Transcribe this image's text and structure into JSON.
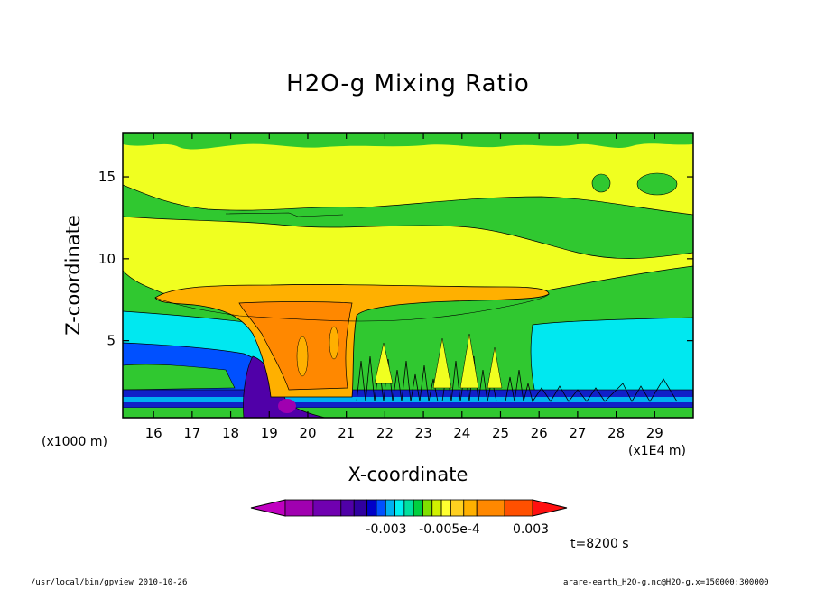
{
  "chart_data": {
    "type": "heatmap",
    "title": "H2O-g Mixing Ratio",
    "xlabel": "X-coordinate",
    "ylabel": "Z-coordinate",
    "x_multiplier_left": "(x1000 m)",
    "x_multiplier_right": "(x1E4 m)",
    "xlim": [
      15.2,
      30.0
    ],
    "ylim": [
      0.3,
      17.7
    ],
    "x_ticks": [
      16,
      17,
      18,
      19,
      20,
      21,
      22,
      23,
      24,
      25,
      26,
      27,
      28,
      29
    ],
    "y_ticks": [
      5,
      10,
      15
    ],
    "colorbar": {
      "labels": [
        "-0.003",
        "-0.005e-4",
        "0.003"
      ],
      "colors": [
        "#c000c0",
        "#a000b0",
        "#7000b0",
        "#5000a8",
        "#3000a0",
        "#0000c8",
        "#0050ff",
        "#00b0f0",
        "#00f0f0",
        "#00e0a0",
        "#00d040",
        "#80e000",
        "#d0f000",
        "#ffff30",
        "#ffd020",
        "#ffb000",
        "#ff8800",
        "#ff5000",
        "#ff1010"
      ]
    },
    "regions": [
      {
        "name": "upper-moist",
        "color": "#30c830",
        "z_range": [
          16.5,
          17.7
        ]
      },
      {
        "name": "upper-band",
        "color": "#f0ff20",
        "z_range": [
          8.5,
          16.5
        ]
      },
      {
        "name": "anvil-cloud",
        "color": "#ffa500",
        "x_range": [
          18.5,
          26.3
        ],
        "z_range": [
          6.5,
          8.5
        ]
      },
      {
        "name": "mid-band",
        "color": "#30c830",
        "z_range": [
          5.5,
          13.0
        ]
      },
      {
        "name": "low-cyan",
        "color": "#00e8f0",
        "z_range": [
          2.5,
          6.0
        ]
      },
      {
        "name": "near-surface-blue",
        "color": "#1020c8",
        "z_range": [
          0.3,
          2.5
        ]
      },
      {
        "name": "surface-purple",
        "color": "#4000a0",
        "x_range": [
          18.5,
          20.5
        ],
        "z_range": [
          0.3,
          3.0
        ]
      }
    ]
  },
  "annotations": {
    "time": "t=8200 s",
    "footer_left": "/usr/local/bin/gpview  2010-10-26",
    "footer_right": "arare-earth_H2O-g.nc@H2O-g,x=150000:300000"
  },
  "colors": {
    "background": "#ffffff",
    "frame": "#000000"
  }
}
